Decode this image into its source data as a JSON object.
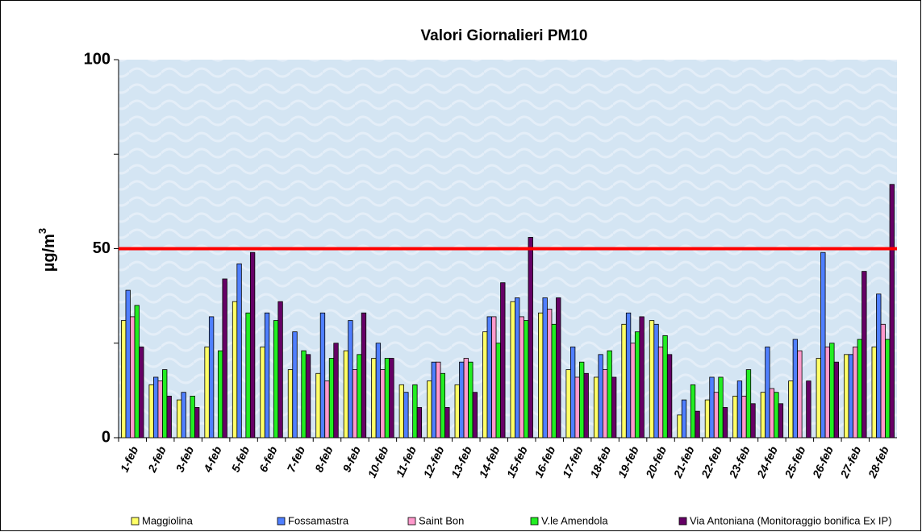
{
  "chart_data": {
    "type": "bar",
    "title": "Valori Giornalieri PM10",
    "y_label": "µg/m",
    "y_label_sup": "3",
    "categories": [
      "1-feb",
      "2-feb",
      "3-feb",
      "4-feb",
      "5-feb",
      "6-feb",
      "7-feb",
      "8-feb",
      "9-feb",
      "10-feb",
      "11-feb",
      "12-feb",
      "13-feb",
      "14-feb",
      "15-feb",
      "16-feb",
      "17-feb",
      "18-feb",
      "19-feb",
      "20-feb",
      "21-feb",
      "22-feb",
      "23-feb",
      "24-feb",
      "25-feb",
      "26-feb",
      "27-feb",
      "28-feb"
    ],
    "series": [
      {
        "name": "Maggiolina",
        "color": "#ffff66",
        "values": [
          31,
          14,
          10,
          24,
          36,
          24,
          18,
          17,
          23,
          21,
          14,
          15,
          14,
          28,
          36,
          33,
          18,
          16,
          30,
          31,
          6,
          10,
          11,
          12,
          15,
          21,
          22,
          24
        ]
      },
      {
        "name": "Fossamastra",
        "color": "#4f7fff",
        "values": [
          39,
          16,
          12,
          32,
          46,
          33,
          28,
          33,
          31,
          25,
          12,
          20,
          20,
          32,
          37,
          37,
          24,
          22,
          33,
          30,
          10,
          16,
          15,
          24,
          26,
          49,
          22,
          38
        ]
      },
      {
        "name": "Saint Bon",
        "color": "#ff99cc",
        "values": [
          32,
          15,
          null,
          null,
          null,
          null,
          null,
          15,
          18,
          18,
          null,
          20,
          21,
          32,
          32,
          34,
          16,
          18,
          25,
          24,
          null,
          12,
          11,
          13,
          23,
          24,
          24,
          30
        ]
      },
      {
        "name": "V.le Amendola",
        "color": "#22ee22",
        "values": [
          35,
          18,
          11,
          23,
          33,
          31,
          23,
          21,
          22,
          21,
          14,
          17,
          20,
          25,
          31,
          30,
          20,
          23,
          28,
          27,
          14,
          16,
          18,
          12,
          null,
          25,
          26,
          26
        ]
      },
      {
        "name": "Via Antoniana (Monitoraggio bonifica Ex IP)",
        "color": "#660066",
        "values": [
          24,
          11,
          8,
          42,
          49,
          36,
          22,
          25,
          33,
          21,
          8,
          8,
          12,
          41,
          53,
          37,
          17,
          16,
          32,
          22,
          7,
          8,
          9,
          9,
          15,
          20,
          44,
          67
        ]
      }
    ],
    "ylim": [
      0,
      100
    ],
    "yticks": [
      0,
      50,
      100
    ],
    "minor_yticks": [
      25,
      75
    ],
    "threshold": 50,
    "threshold_color": "#ff0000"
  }
}
